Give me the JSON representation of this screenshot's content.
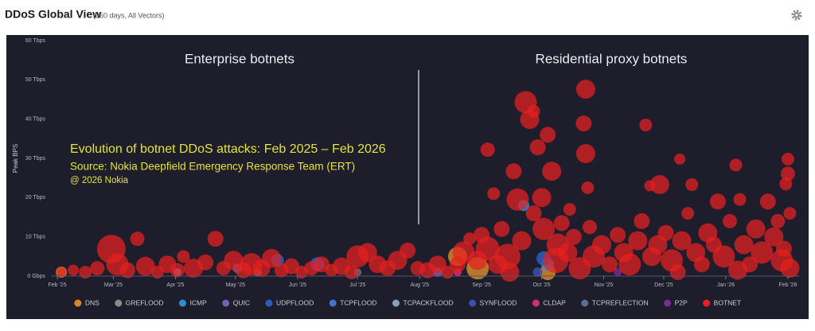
{
  "chart_data": {
    "type": "bubble",
    "title": "DDoS Global View",
    "subtitle": "(360 days, All Vectors)",
    "ylabel": "Peak BPS",
    "annotations": [
      "Enterprise botnets",
      "Residential proxy botnets",
      "Evolution of botnet DDoS attacks: Feb 2025 – Feb 2026",
      "Source: Nokia Deepfield Emergency Response Team (ERT)",
      "@ 2026 Nokia"
    ],
    "xlim": [
      -3,
      371
    ],
    "xticks": [
      {
        "value": 0,
        "label": "Feb '25"
      },
      {
        "value": 28,
        "label": "Mar '25"
      },
      {
        "value": 59,
        "label": "Apr '25"
      },
      {
        "value": 89,
        "label": "May '25"
      },
      {
        "value": 120,
        "label": "Jun '25"
      },
      {
        "value": 150,
        "label": "Jul '25"
      },
      {
        "value": 181,
        "label": "Aug '25"
      },
      {
        "value": 212,
        "label": "Sep '25"
      },
      {
        "value": 242,
        "label": "Oct '25"
      },
      {
        "value": 273,
        "label": "Nov '25"
      },
      {
        "value": 303,
        "label": "Dec '25"
      },
      {
        "value": 334,
        "label": "Jan '26"
      },
      {
        "value": 365,
        "label": "Feb '26"
      }
    ],
    "ylim": [
      0,
      60
    ],
    "yticks": [
      {
        "value": 0,
        "label": "0 Gbps"
      },
      {
        "value": 10,
        "label": "10 Tbps"
      },
      {
        "value": 20,
        "label": "20 Tbps"
      },
      {
        "value": 30,
        "label": "30 Tbps"
      },
      {
        "value": 40,
        "label": "40 Tbps"
      },
      {
        "value": 50,
        "label": "50 Tbps"
      },
      {
        "value": 60,
        "label": "60 Tbps"
      }
    ],
    "grid": false,
    "legend": "bottom",
    "series": [
      {
        "name": "DNS",
        "color": "#d4882a",
        "x": [
          2,
          200,
          210,
          245
        ],
        "values": [
          1,
          5,
          2,
          1
        ],
        "sizes": [
          7,
          12,
          14,
          10
        ]
      },
      {
        "name": "GREFLOOD",
        "color": "#8a8a8a",
        "x": [
          100
        ],
        "values": [
          1
        ],
        "sizes": [
          5
        ]
      },
      {
        "name": "ICMP",
        "color": "#2b8fd0",
        "x": [
          233,
          245
        ],
        "values": [
          18,
          3
        ],
        "sizes": [
          7,
          8
        ]
      },
      {
        "name": "QUIC",
        "color": "#7a5fb0",
        "x": [
          190
        ],
        "values": [
          1
        ],
        "sizes": [
          6
        ]
      },
      {
        "name": "UDPFLOOD",
        "color": "#2a5fc0",
        "x": [
          243,
          110,
          130
        ],
        "values": [
          4.5,
          4,
          3
        ],
        "sizes": [
          9,
          8,
          9
        ]
      },
      {
        "name": "TCPFLOOD",
        "color": "#4a70c8",
        "x": [
          90
        ],
        "values": [
          2
        ],
        "sizes": [
          6
        ]
      },
      {
        "name": "TCPACKFLOOD",
        "color": "#8aa0b8",
        "x": [
          60
        ],
        "values": [
          1
        ],
        "sizes": [
          5
        ]
      },
      {
        "name": "SYNFLOOD",
        "color": "#3a50b0",
        "x": [
          240
        ],
        "values": [
          1
        ],
        "sizes": [
          6
        ]
      },
      {
        "name": "CLDAP",
        "color": "#d0306f",
        "x": [
          200
        ],
        "values": [
          1
        ],
        "sizes": [
          5
        ]
      },
      {
        "name": "TCPREFLECTION",
        "color": "#5a6f90",
        "x": [
          150
        ],
        "values": [
          1
        ],
        "sizes": [
          5
        ]
      },
      {
        "name": "P2P",
        "color": "#7a2a90",
        "x": [
          280
        ],
        "values": [
          1
        ],
        "sizes": [
          5
        ]
      },
      {
        "name": "BOTNET",
        "color": "#e82020",
        "x": [
          2,
          8,
          14,
          20,
          27,
          30,
          35,
          40,
          44,
          50,
          55,
          60,
          63,
          68,
          74,
          79,
          83,
          88,
          93,
          97,
          102,
          107,
          112,
          117,
          122,
          127,
          132,
          137,
          142,
          147,
          150,
          155,
          160,
          165,
          170,
          175,
          180,
          185,
          190,
          195,
          200,
          203,
          206,
          210,
          212,
          215,
          215,
          218,
          220,
          222,
          225,
          228,
          230,
          232,
          234,
          236,
          238,
          240,
          242,
          243,
          245,
          247,
          249,
          250,
          252,
          255,
          258,
          261,
          263,
          264,
          264,
          265,
          266,
          268,
          272,
          276,
          280,
          283,
          286,
          290,
          294,
          296,
          297,
          300,
          301,
          304,
          307,
          311,
          312,
          315,
          317,
          319,
          322,
          325,
          328,
          330,
          333,
          336,
          339,
          341,
          343,
          346,
          349,
          352,
          355,
          358,
          360,
          362,
          363,
          364,
          365,
          365,
          366,
          366,
          238,
          226,
          256,
          292,
          340,
          310
        ],
        "values": [
          1,
          1.5,
          1,
          2,
          6.9,
          3,
          1.5,
          9.5,
          2.5,
          1,
          3,
          1.5,
          5,
          2,
          3.5,
          9.5,
          2,
          4,
          1.5,
          3,
          2,
          4.5,
          1.5,
          2.5,
          1,
          2,
          3,
          1.5,
          2.5,
          1,
          5,
          6,
          3,
          2,
          4,
          6.5,
          2,
          1.5,
          3,
          1,
          3,
          6,
          9.5,
          4,
          10.5,
          32.2,
          7,
          21,
          3,
          12,
          5,
          26.7,
          19.5,
          9,
          44.3,
          39.9,
          42,
          32.8,
          20,
          12,
          36,
          26.7,
          4,
          8,
          13.5,
          6,
          10,
          2,
          38.9,
          47.6,
          31.2,
          22.5,
          12.5,
          5,
          8,
          3,
          10.5,
          6,
          3,
          9,
          38.5,
          23,
          5,
          8,
          23.3,
          11,
          4,
          29.8,
          9,
          16,
          23.3,
          6,
          3,
          11,
          8,
          19,
          5,
          14,
          28.3,
          19.5,
          8,
          3,
          12,
          6,
          19,
          10,
          14,
          4,
          7,
          23.5,
          29.8,
          26.1,
          16,
          2,
          16,
          1,
          17,
          14,
          1.5,
          1
        ],
        "sizes": [
          6,
          7,
          8,
          9,
          18,
          14,
          10,
          9,
          12,
          8,
          11,
          9,
          8,
          12,
          10,
          10,
          9,
          12,
          10,
          14,
          11,
          12,
          9,
          10,
          8,
          9,
          10,
          8,
          11,
          9,
          14,
          12,
          11,
          10,
          12,
          10,
          9,
          10,
          11,
          8,
          10,
          14,
          8,
          12,
          10,
          9,
          15,
          8,
          12,
          10,
          16,
          10,
          14,
          12,
          14,
          12,
          8,
          10,
          12,
          14,
          10,
          12,
          16,
          14,
          10,
          12,
          10,
          14,
          10,
          12,
          12,
          8,
          9,
          14,
          12,
          10,
          10,
          12,
          14,
          12,
          8,
          7,
          12,
          12,
          12,
          10,
          14,
          7,
          12,
          8,
          8,
          12,
          10,
          12,
          10,
          10,
          14,
          9,
          8,
          8,
          12,
          10,
          12,
          14,
          10,
          12,
          9,
          14,
          10,
          8,
          8,
          9,
          8,
          12,
          10,
          12,
          8,
          10,
          12,
          10
        ]
      }
    ]
  }
}
